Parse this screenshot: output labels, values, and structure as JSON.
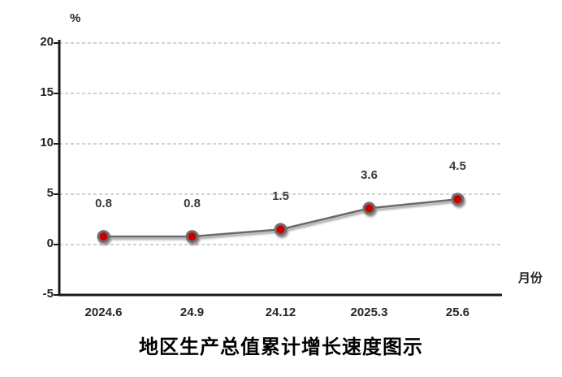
{
  "chart_data": {
    "type": "line",
    "title": "地区生产总值累计增长速度图示",
    "y_axis_unit_label": "%",
    "x_axis_label": "月份",
    "categories": [
      "2024.6",
      "24.9",
      "24.12",
      "2025.3",
      "25.6"
    ],
    "series": [
      {
        "values": [
          0.8,
          0.8,
          1.5,
          3.6,
          4.5
        ]
      }
    ],
    "data_labels": [
      "0.8",
      "0.8",
      "1.5",
      "3.6",
      "4.5"
    ],
    "y_ticks": [
      20,
      15,
      10,
      5,
      0,
      -5
    ],
    "ylim": [
      -5,
      20
    ],
    "grid": "horizontal-dashed",
    "legend": "none",
    "colors": {
      "marker_fill": "#c80000",
      "marker_ring": "#707070",
      "line": "#6b6b6b",
      "gridline": "#c3c3c3",
      "axis": "#1a1a1a",
      "text": "#262626"
    }
  }
}
